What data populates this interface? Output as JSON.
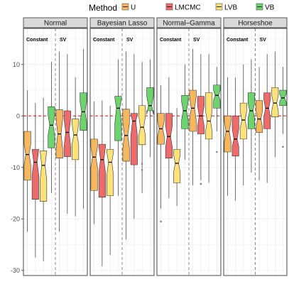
{
  "chart_data": {
    "type": "boxplot",
    "legend": {
      "title": "Method",
      "position": "top",
      "items": [
        {
          "key": "U",
          "label": "U",
          "color": "#F5B85E"
        },
        {
          "key": "LMCMC",
          "label": "LMCMC",
          "color": "#EE6B6B"
        },
        {
          "key": "LVB",
          "label": "LVB",
          "color": "#FBE27A"
        },
        {
          "key": "VB",
          "label": "VB",
          "color": "#6ED36E"
        }
      ]
    },
    "ylim": [
      -31,
      17
    ],
    "yticks": [
      -30,
      -20,
      -10,
      0,
      10
    ],
    "grid": true,
    "reference_line": {
      "y": 0,
      "color": "#D9453A",
      "style": "dashed"
    },
    "groups": [
      "Constant",
      "SV"
    ],
    "panels": [
      {
        "title": "Normal",
        "boxes": [
          {
            "group": "Constant",
            "method": "U",
            "whisker_low": -22.5,
            "q1": -12.5,
            "median": -7.5,
            "q3": -3,
            "whisker_high": 5,
            "notch": [
              -9.5,
              -5.5
            ],
            "outliers": []
          },
          {
            "group": "Constant",
            "method": "LMCMC",
            "whisker_low": -27.5,
            "q1": -16.2,
            "median": -9,
            "q3": -6.5,
            "whisker_high": 2.5,
            "notch": [
              -11.5,
              -6.5
            ],
            "outliers": []
          },
          {
            "group": "Constant",
            "method": "LVB",
            "whisker_low": -28.2,
            "q1": -16.6,
            "median": -9.6,
            "q3": -6.8,
            "whisker_high": 3.5,
            "notch": [
              -12.5,
              -6.8
            ],
            "outliers": []
          },
          {
            "group": "Constant",
            "method": "VB",
            "whisker_low": -15,
            "q1": -6.2,
            "median": -1.8,
            "q3": 1.8,
            "whisker_high": 10.5,
            "notch": [
              -3.8,
              0.2
            ],
            "outliers": []
          },
          {
            "group": "SV",
            "method": "U",
            "whisker_low": -22.5,
            "q1": -8.2,
            "median": -3.5,
            "q3": 1.2,
            "whisker_high": 12.5,
            "notch": [
              -6.5,
              -0.5
            ],
            "outliers": []
          },
          {
            "group": "SV",
            "method": "LMCMC",
            "whisker_low": -19,
            "q1": -7.9,
            "median": -3.2,
            "q3": 1,
            "whisker_high": 12,
            "notch": [
              -6,
              -0.5
            ],
            "outliers": []
          },
          {
            "group": "SV",
            "method": "LVB",
            "whisker_low": -19.5,
            "q1": -8.5,
            "median": -3.7,
            "q3": -0.6,
            "whisker_high": 7.5,
            "notch": [
              -5.5,
              -1.5
            ],
            "outliers": []
          },
          {
            "group": "SV",
            "method": "VB",
            "whisker_low": -18,
            "q1": -2.8,
            "median": 0.8,
            "q3": 4.5,
            "whisker_high": 13,
            "notch": [
              -1.2,
              2.8
            ],
            "outliers": []
          }
        ]
      },
      {
        "title": "Bayesian Lasso",
        "boxes": [
          {
            "group": "Constant",
            "method": "U",
            "whisker_low": -21,
            "q1": -14.5,
            "median": -8,
            "q3": -4.5,
            "whisker_high": 2.8,
            "notch": [
              -10,
              -6
            ],
            "outliers": []
          },
          {
            "group": "Constant",
            "method": "LMCMC",
            "whisker_low": -29.2,
            "q1": -15.8,
            "median": -8.5,
            "q3": -5.5,
            "whisker_high": 3,
            "notch": [
              -11,
              -6
            ],
            "outliers": []
          },
          {
            "group": "Constant",
            "method": "LVB",
            "whisker_low": -27,
            "q1": -15.5,
            "median": -9,
            "q3": -6.5,
            "whisker_high": 2,
            "notch": [
              -11.5,
              -7
            ],
            "outliers": []
          },
          {
            "group": "Constant",
            "method": "VB",
            "whisker_low": -15.5,
            "q1": -4.8,
            "median": 1.5,
            "q3": 3.8,
            "whisker_high": 11,
            "notch": [
              -1.5,
              3.5
            ],
            "outliers": []
          },
          {
            "group": "SV",
            "method": "U",
            "whisker_low": -24,
            "q1": -8.8,
            "median": -3.8,
            "q3": 1.3,
            "whisker_high": 12.5,
            "notch": [
              -6.3,
              -1.3
            ],
            "outliers": []
          },
          {
            "group": "SV",
            "method": "LMCMC",
            "whisker_low": -20,
            "q1": -9.5,
            "median": -1,
            "q3": 0.5,
            "whisker_high": 12,
            "notch": [
              -4,
              0.3
            ],
            "outliers": []
          },
          {
            "group": "SV",
            "method": "LVB",
            "whisker_low": -15,
            "q1": -5.6,
            "median": -2.2,
            "q3": 2,
            "whisker_high": 10.5,
            "notch": [
              -3.8,
              0
            ],
            "outliers": [
              -9.3,
              -10.5
            ]
          },
          {
            "group": "SV",
            "method": "VB",
            "whisker_low": -8,
            "q1": 1,
            "median": 2,
            "q3": 5.5,
            "whisker_high": 11,
            "notch": [
              0.3,
              3.8
            ],
            "outliers": []
          }
        ]
      },
      {
        "title": "Normal–Gamma",
        "boxes": [
          {
            "group": "Constant",
            "method": "U",
            "whisker_low": -18,
            "q1": -5.5,
            "median": -2.5,
            "q3": 0.5,
            "whisker_high": 6,
            "notch": [
              -4,
              -1
            ],
            "outliers": [
              -20.5
            ]
          },
          {
            "group": "Constant",
            "method": "LMCMC",
            "whisker_low": -16,
            "q1": -8.2,
            "median": -4,
            "q3": 0.5,
            "whisker_high": 7.5,
            "notch": [
              -6,
              -2
            ],
            "outliers": []
          },
          {
            "group": "Constant",
            "method": "LVB",
            "whisker_low": -17.5,
            "q1": -13,
            "median": -9.2,
            "q3": -6.5,
            "whisker_high": 1.5,
            "notch": [
              -11,
              -7.5
            ],
            "outliers": []
          },
          {
            "group": "Constant",
            "method": "VB",
            "whisker_low": -8.5,
            "q1": -2.5,
            "median": 1,
            "q3": 4,
            "whisker_high": 10,
            "notch": [
              -0.8,
              2.8
            ],
            "outliers": []
          },
          {
            "group": "SV",
            "method": "U",
            "whisker_low": -13.5,
            "q1": -3,
            "median": 1.5,
            "q3": 5,
            "whisker_high": 13,
            "notch": [
              -0.8,
              3.8
            ],
            "outliers": []
          },
          {
            "group": "SV",
            "method": "LMCMC",
            "whisker_low": -12.5,
            "q1": -3.5,
            "median": 0,
            "q3": 3.8,
            "whisker_high": 12,
            "notch": [
              -2,
              2
            ],
            "outliers": [
              -13.2
            ]
          },
          {
            "group": "SV",
            "method": "LVB",
            "whisker_low": -13,
            "q1": -4.5,
            "median": -1,
            "q3": 4.5,
            "whisker_high": 12,
            "notch": [
              -3,
              1
            ],
            "outliers": []
          },
          {
            "group": "SV",
            "method": "VB",
            "whisker_low": -3,
            "q1": 1.5,
            "median": 4,
            "q3": 6,
            "whisker_high": 9.5,
            "notch": [
              3,
              5
            ],
            "outliers": [
              -7
            ]
          }
        ]
      },
      {
        "title": "Horseshoe",
        "boxes": [
          {
            "group": "Constant",
            "method": "U",
            "whisker_low": -15.5,
            "q1": -7,
            "median": -3,
            "q3": 0,
            "whisker_high": 7.5,
            "notch": [
              -5,
              -1
            ],
            "outliers": []
          },
          {
            "group": "Constant",
            "method": "LMCMC",
            "whisker_low": -16.5,
            "q1": -7.8,
            "median": -4.5,
            "q3": 0,
            "whisker_high": 7.5,
            "notch": [
              -6,
              -2.5
            ],
            "outliers": []
          },
          {
            "group": "Constant",
            "method": "LVB",
            "whisker_low": -13.5,
            "q1": -4.5,
            "median": -0.8,
            "q3": 2.5,
            "whisker_high": 10,
            "notch": [
              -2.5,
              1
            ],
            "outliers": []
          },
          {
            "group": "Constant",
            "method": "VB",
            "whisker_low": -11,
            "q1": -2.5,
            "median": 1,
            "q3": 4.5,
            "whisker_high": 11,
            "notch": [
              -0.5,
              2.5
            ],
            "outliers": []
          },
          {
            "group": "SV",
            "method": "U",
            "whisker_low": -12.5,
            "q1": -3.2,
            "median": -0.6,
            "q3": 3,
            "whisker_high": 9.5,
            "notch": [
              -2.2,
              1
            ],
            "outliers": []
          },
          {
            "group": "SV",
            "method": "LMCMC",
            "whisker_low": -13,
            "q1": -2.5,
            "median": 1.5,
            "q3": 4.5,
            "whisker_high": 12,
            "notch": [
              -0.3,
              3.2
            ],
            "outliers": []
          },
          {
            "group": "SV",
            "method": "LVB",
            "whisker_low": -8,
            "q1": -0.2,
            "median": 2.5,
            "q3": 5.5,
            "whisker_high": 12.5,
            "notch": [
              1,
              4
            ],
            "outliers": []
          },
          {
            "group": "SV",
            "method": "VB",
            "whisker_low": -3.5,
            "q1": 2,
            "median": 3.5,
            "q3": 5,
            "whisker_high": 9.5,
            "notch": [
              2.7,
              4.3
            ],
            "outliers": [
              -6
            ]
          }
        ]
      }
    ]
  }
}
